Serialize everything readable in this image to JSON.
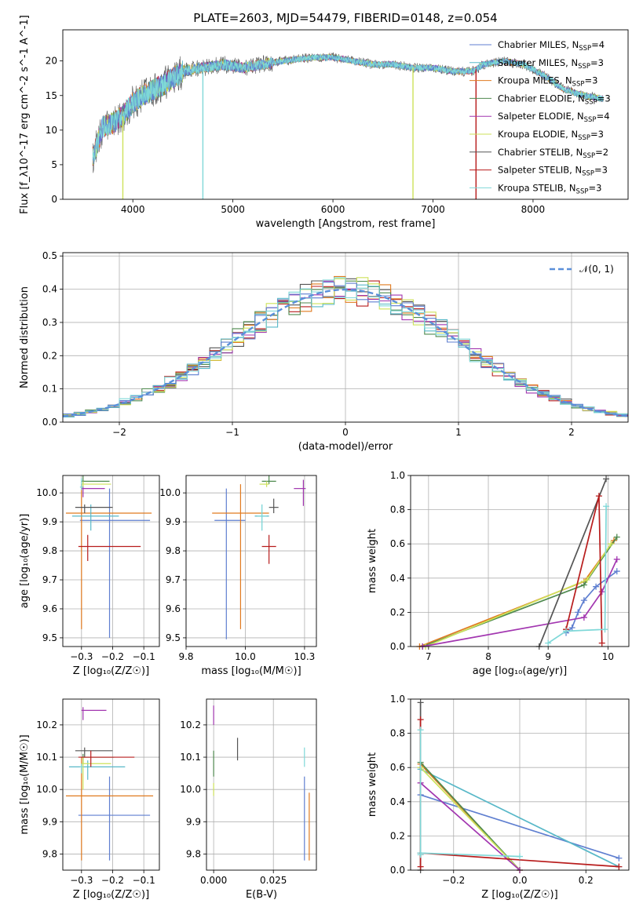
{
  "figure_title": "PLATE=2603, MJD=54479, FIBERID=0148, z=0.054",
  "series": [
    {
      "name": "Chabrier MILES, N<sub>SSP</sub>=4",
      "color": "#5f7fd0"
    },
    {
      "name": "Salpeter MILES, N<sub>SSP</sub>=3",
      "color": "#58b8c8"
    },
    {
      "name": "Kroupa MILES, N<sub>SSP</sub>=3",
      "color": "#e07a1f"
    },
    {
      "name": "Chabrier ELODIE, N<sub>SSP</sub>=3",
      "color": "#4f8a4f"
    },
    {
      "name": "Salpeter ELODIE, N<sub>SSP</sub>=4",
      "color": "#a236b0"
    },
    {
      "name": "Kroupa ELODIE, N<sub>SSP</sub>=3",
      "color": "#cde25a"
    },
    {
      "name": "Chabrier STELIB, N<sub>SSP</sub>=2",
      "color": "#555555"
    },
    {
      "name": "Salpeter STELIB, N<sub>SSP</sub>=3",
      "color": "#b81c1c"
    },
    {
      "name": "Kroupa STELIB, N<sub>SSP</sub>=3",
      "color": "#7fd8d8"
    }
  ],
  "chart_data": [
    {
      "id": "spectrum",
      "type": "line",
      "xlabel": "wavelength [Angstrom, rest frame]",
      "ylabel": "Flux [f_λ10^-17 erg cm^-2 s^-1 A^-1]",
      "xlim": [
        3300,
        8950
      ],
      "ylim": [
        0,
        24.5
      ],
      "xticks": [
        4000,
        5000,
        6000,
        7000,
        8000
      ],
      "yticks": [
        0,
        5,
        10,
        15,
        20
      ],
      "grid": false,
      "legend": "upper right",
      "continuum_points": [
        [
          3600,
          6
        ],
        [
          3700,
          10.5
        ],
        [
          3800,
          11
        ],
        [
          3900,
          12
        ],
        [
          4000,
          14
        ],
        [
          4100,
          15
        ],
        [
          4300,
          16.5
        ],
        [
          4500,
          18.5
        ],
        [
          4700,
          19
        ],
        [
          4900,
          19.5
        ],
        [
          5100,
          19
        ],
        [
          5300,
          19.5
        ],
        [
          5500,
          20
        ],
        [
          5800,
          20.5
        ],
        [
          6000,
          20.5
        ],
        [
          6200,
          20
        ],
        [
          6400,
          19.5
        ],
        [
          6600,
          19.5
        ],
        [
          6800,
          19
        ],
        [
          7000,
          19
        ],
        [
          7200,
          18.5
        ],
        [
          7400,
          18.5
        ],
        [
          7500,
          19.5
        ],
        [
          7700,
          20
        ],
        [
          7900,
          19.5
        ],
        [
          8100,
          18
        ],
        [
          8300,
          16
        ],
        [
          8500,
          15
        ],
        [
          8700,
          14.5
        ]
      ],
      "drops": [
        {
          "x": 3900,
          "y": 0,
          "series": 5
        },
        {
          "x": 4700,
          "y": 0,
          "series": 8
        },
        {
          "x": 6800,
          "y": 0,
          "series": 5
        },
        {
          "x": 7430,
          "y": 0,
          "series": 7
        }
      ]
    },
    {
      "id": "residuals",
      "type": "step",
      "xlabel": "(data-model)/error",
      "ylabel": "Normed distribution",
      "xlim": [
        -2.5,
        2.5
      ],
      "ylim": [
        0,
        0.51
      ],
      "xticks": [
        -2,
        -1,
        0,
        1,
        2
      ],
      "yticks": [
        0.0,
        0.1,
        0.2,
        0.3,
        0.4,
        0.5
      ],
      "grid": true,
      "legend": "upper right",
      "normal_label": "𝒩(0, 1)",
      "normal_color": "#5b8fd9"
    },
    {
      "id": "z_vs_age",
      "type": "errorbar",
      "xlabel": "Z [log₁₀(Z/Z☉)]",
      "ylabel": "age  [log₁₀(age/yr)]",
      "xlim": [
        -0.36,
        -0.05
      ],
      "ylim": [
        9.47,
        10.06
      ],
      "xticks": [
        -0.3,
        -0.2,
        -0.1
      ],
      "yticks": [
        9.5,
        9.6,
        9.7,
        9.8,
        9.9,
        10.0
      ],
      "grid": true,
      "points": [
        {
          "series": 0,
          "x": -0.21,
          "y": 9.905,
          "xerr": [
            0.095,
            0.13
          ],
          "yerr": [
            0.405,
            0.11
          ]
        },
        {
          "series": 2,
          "x": -0.3,
          "y": 9.93,
          "xerr": [
            0.05,
            0.225
          ],
          "yerr": [
            0.4,
            0.1
          ]
        },
        {
          "series": 1,
          "x": -0.27,
          "y": 9.92,
          "xerr": [
            0.06,
            0.09
          ],
          "yerr": [
            0.05,
            0.04
          ]
        },
        {
          "series": 3,
          "x": -0.295,
          "y": 10.04,
          "xerr": [
            0.005,
            0.085
          ],
          "yerr": [
            0.01,
            0.02
          ]
        },
        {
          "series": 4,
          "x": -0.295,
          "y": 10.015,
          "xerr": [
            0.005,
            0.07
          ],
          "yerr": [
            0.03,
            0.01
          ]
        },
        {
          "series": 5,
          "x": -0.295,
          "y": 10.03,
          "xerr": [
            0.005,
            0.09
          ],
          "yerr": [
            0.01,
            0.01
          ]
        },
        {
          "series": 6,
          "x": -0.29,
          "y": 9.95,
          "xerr": [
            0.03,
            0.09
          ],
          "yerr": [
            0.02,
            0.01
          ]
        },
        {
          "series": 7,
          "x": -0.28,
          "y": 9.815,
          "xerr": [
            0.03,
            0.17
          ],
          "yerr": [
            0.05,
            0.04
          ]
        },
        {
          "series": 8,
          "x": -0.3,
          "y": 10.02,
          "xerr": [
            0.005,
            0.005
          ],
          "yerr": [
            0.01,
            0.03
          ]
        }
      ]
    },
    {
      "id": "mass_vs_age",
      "type": "errorbar",
      "xlabel": "mass [log₁₀(M/M☉)]",
      "ylabel": "",
      "xlim": [
        9.75,
        10.3
      ],
      "ylim": [
        9.47,
        10.06
      ],
      "xticks": [
        9.75,
        10.0,
        10.25
      ],
      "yticks": [
        9.5,
        9.6,
        9.7,
        9.8,
        9.9,
        10.0
      ],
      "grid": true,
      "points": [
        {
          "series": 0,
          "x": 9.92,
          "y": 9.905,
          "xerr": [
            0.05,
            0.08
          ],
          "yerr": [
            0.41,
            0.11
          ]
        },
        {
          "series": 2,
          "x": 9.98,
          "y": 9.93,
          "xerr": [
            0.12,
            0.12
          ],
          "yerr": [
            0.4,
            0.1
          ]
        },
        {
          "series": 1,
          "x": 10.07,
          "y": 9.92,
          "xerr": [
            0.03,
            0.03
          ],
          "yerr": [
            0.05,
            0.04
          ]
        },
        {
          "series": 3,
          "x": 10.1,
          "y": 10.04,
          "xerr": [
            0.03,
            0.03
          ],
          "yerr": [
            0.01,
            0.02
          ]
        },
        {
          "series": 4,
          "x": 10.245,
          "y": 10.015,
          "xerr": [
            0.04,
            0.01
          ],
          "yerr": [
            0.06,
            0.03
          ]
        },
        {
          "series": 5,
          "x": 10.09,
          "y": 10.03,
          "xerr": [
            0.03,
            0.01
          ],
          "yerr": [
            0.01,
            0.01
          ]
        },
        {
          "series": 6,
          "x": 10.12,
          "y": 9.95,
          "xerr": [
            0.02,
            0.02
          ],
          "yerr": [
            0.02,
            0.03
          ]
        },
        {
          "series": 7,
          "x": 10.1,
          "y": 9.815,
          "xerr": [
            0.03,
            0.03
          ],
          "yerr": [
            0.06,
            0.04
          ]
        },
        {
          "series": 8,
          "x": 10.07,
          "y": 9.92,
          "xerr": [
            0.02,
            0.02
          ],
          "yerr": [
            0.05,
            0.04
          ]
        }
      ]
    },
    {
      "id": "age_weight",
      "type": "line",
      "xlabel": "age  [log₁₀(age/yr)]",
      "ylabel": "mass weight",
      "xlim": [
        6.7,
        10.35
      ],
      "ylim": [
        0,
        1.0
      ],
      "xticks": [
        7,
        8,
        9,
        10
      ],
      "yticks": [
        0.0,
        0.2,
        0.4,
        0.6,
        0.8,
        1.0
      ],
      "grid": true,
      "lines": [
        {
          "series": 0,
          "x": [
            9.3,
            9.4,
            9.5,
            9.6,
            9.8,
            10.15
          ],
          "y": [
            0.08,
            0.11,
            0.2,
            0.27,
            0.35,
            0.44
          ]
        },
        {
          "series": 2,
          "x": [
            6.85,
            9.6,
            10.1
          ],
          "y": [
            0.0,
            0.38,
            0.62
          ]
        },
        {
          "series": 3,
          "x": [
            6.9,
            9.6,
            10.15
          ],
          "y": [
            0.0,
            0.36,
            0.64
          ]
        },
        {
          "series": 5,
          "x": [
            6.95,
            9.65,
            10.05
          ],
          "y": [
            0.0,
            0.39,
            0.6
          ]
        },
        {
          "series": 4,
          "x": [
            6.9,
            9.6,
            9.9,
            10.15
          ],
          "y": [
            0.0,
            0.17,
            0.32,
            0.51
          ]
        },
        {
          "series": 6,
          "x": [
            8.85,
            9.97
          ],
          "y": [
            0.0,
            0.98
          ]
        },
        {
          "series": 7,
          "x": [
            9.3,
            9.85,
            9.9
          ],
          "y": [
            0.1,
            0.88,
            0.02
          ]
        },
        {
          "series": 8,
          "x": [
            9.0,
            9.3,
            9.95,
            9.97
          ],
          "y": [
            0.02,
            0.09,
            0.1,
            0.82
          ]
        }
      ]
    },
    {
      "id": "z_vs_mass",
      "type": "errorbar",
      "xlabel": "Z [log₁₀(Z/Z☉)]",
      "ylabel": "mass [log₁₀(M/M☉)]",
      "xlim": [
        -0.36,
        -0.05
      ],
      "ylim": [
        9.75,
        10.28
      ],
      "xticks": [
        -0.3,
        -0.2,
        -0.1
      ],
      "yticks": [
        9.8,
        9.9,
        10.0,
        10.1,
        10.2
      ],
      "grid": true,
      "points": [
        {
          "series": 0,
          "x": -0.21,
          "y": 9.92,
          "xerr": [
            0.1,
            0.13
          ],
          "yerr": [
            0.14,
            0.12
          ]
        },
        {
          "series": 2,
          "x": -0.3,
          "y": 9.98,
          "xerr": [
            0.05,
            0.23
          ],
          "yerr": [
            0.2,
            0.12
          ]
        },
        {
          "series": 1,
          "x": -0.28,
          "y": 10.07,
          "xerr": [
            0.06,
            0.12
          ],
          "yerr": [
            0.04,
            0.02
          ]
        },
        {
          "series": 3,
          "x": -0.295,
          "y": 10.1,
          "xerr": [
            0.005,
            0.1
          ],
          "yerr": [
            0.02,
            0.01
          ]
        },
        {
          "series": 4,
          "x": -0.295,
          "y": 10.245,
          "xerr": [
            0.005,
            0.075
          ],
          "yerr": [
            0.03,
            0.01
          ]
        },
        {
          "series": 5,
          "x": -0.295,
          "y": 10.08,
          "xerr": [
            0.005,
            0.09
          ],
          "yerr": [
            0.08,
            0.02
          ]
        },
        {
          "series": 6,
          "x": -0.29,
          "y": 10.12,
          "xerr": [
            0.03,
            0.09
          ],
          "yerr": [
            0.02,
            0.01
          ]
        },
        {
          "series": 7,
          "x": -0.27,
          "y": 10.1,
          "xerr": [
            0.04,
            0.14
          ],
          "yerr": [
            0.03,
            0.02
          ]
        },
        {
          "series": 8,
          "x": -0.3,
          "y": 10.07,
          "xerr": [
            0.005,
            0.005
          ],
          "yerr": [
            0.02,
            0.01
          ]
        }
      ]
    },
    {
      "id": "ebv_vs_mass",
      "type": "errorbar",
      "xlabel": "E(B-V)",
      "ylabel": "",
      "xlim": [
        -0.003,
        0.043
      ],
      "ylim": [
        9.75,
        10.28
      ],
      "xticks": [
        0.0,
        0.025
      ],
      "yticks": [
        9.8,
        9.9,
        10.0,
        10.1,
        10.2
      ],
      "grid": true,
      "points": [
        {
          "series": 0,
          "x": 0.038,
          "y": 9.92,
          "xerr": [
            0.0,
            0.0
          ],
          "yerr": [
            0.14,
            0.12
          ]
        },
        {
          "series": 2,
          "x": 0.04,
          "y": 9.88,
          "xerr": [
            0.0,
            0.0
          ],
          "yerr": [
            0.1,
            0.11
          ]
        },
        {
          "series": 4,
          "x": 0.0,
          "y": 10.23,
          "xerr": [
            0.0,
            0.0
          ],
          "yerr": [
            0.03,
            0.03
          ]
        },
        {
          "series": 5,
          "x": 0.0,
          "y": 10.0,
          "xerr": [
            0.0,
            0.0
          ],
          "yerr": [
            0.02,
            0.02
          ]
        },
        {
          "series": 6,
          "x": 0.01,
          "y": 10.12,
          "xerr": [
            0.0,
            0.0
          ],
          "yerr": [
            0.03,
            0.04
          ]
        },
        {
          "series": 3,
          "x": 0.0,
          "y": 10.08,
          "xerr": [
            0.0,
            0.0
          ],
          "yerr": [
            0.04,
            0.04
          ]
        },
        {
          "series": 8,
          "x": 0.038,
          "y": 10.1,
          "xerr": [
            0.0,
            0.0
          ],
          "yerr": [
            0.03,
            0.03
          ]
        }
      ]
    },
    {
      "id": "z_weight",
      "type": "line",
      "xlabel": "Z [log₁₀(Z/Z☉)]",
      "ylabel": "mass weight",
      "xlim": [
        -0.33,
        0.33
      ],
      "ylim": [
        0,
        1.0
      ],
      "xticks": [
        -0.2,
        0.0,
        0.2
      ],
      "yticks": [
        0.0,
        0.2,
        0.4,
        0.6,
        0.8,
        1.0
      ],
      "grid": true,
      "lines": [
        {
          "series": 0,
          "x": [
            -0.3,
            0.3
          ],
          "y": [
            0.44,
            0.07
          ]
        },
        {
          "series": 1,
          "x": [
            -0.3,
            0.3
          ],
          "y": [
            0.59,
            0.02
          ]
        },
        {
          "series": 2,
          "x": [
            -0.3,
            0.0
          ],
          "y": [
            0.62,
            0.0
          ]
        },
        {
          "series": 3,
          "x": [
            -0.3,
            0.0
          ],
          "y": [
            0.63,
            0.0
          ]
        },
        {
          "series": 5,
          "x": [
            -0.3,
            0.0
          ],
          "y": [
            0.6,
            0.0
          ]
        },
        {
          "series": 4,
          "x": [
            -0.3,
            0.0
          ],
          "y": [
            0.51,
            0.0
          ]
        },
        {
          "series": 7,
          "x": [
            -0.3,
            0.3
          ],
          "y": [
            0.1,
            0.02
          ]
        },
        {
          "series": 8,
          "x": [
            -0.3,
            0.0
          ],
          "y": [
            0.1,
            0.08
          ]
        },
        {
          "series": 6,
          "x": [
            -0.3,
            -0.3
          ],
          "y": [
            0.0,
            0.98
          ]
        },
        {
          "series": 7,
          "x": [
            -0.3,
            -0.3
          ],
          "y": [
            0.02,
            0.88
          ]
        },
        {
          "series": 8,
          "x": [
            -0.3,
            -0.3
          ],
          "y": [
            0.09,
            0.82
          ]
        }
      ]
    }
  ]
}
